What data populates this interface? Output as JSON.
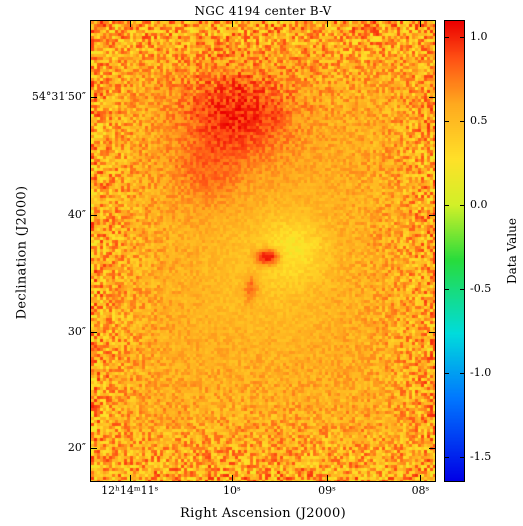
{
  "image": {
    "title": "NGC 4194 center B-V",
    "xlabel": "Right Ascension (J2000)",
    "ylabel": "Declination (J2000)",
    "colorbar_label": "Data Value"
  },
  "y_ticks": [
    {
      "label": "54°31′50″",
      "frac": 0.167
    },
    {
      "label": "40″",
      "frac": 0.421
    },
    {
      "label": "30″",
      "frac": 0.676
    },
    {
      "label": "20″",
      "frac": 0.926
    }
  ],
  "x_ticks": [
    {
      "label": "12ʰ14ᵐ11ˢ",
      "frac": 0.115
    },
    {
      "label": "10ˢ",
      "frac": 0.41
    },
    {
      "label": "09ˢ",
      "frac": 0.685
    },
    {
      "label": "08ˢ",
      "frac": 0.955
    }
  ],
  "colorbar": {
    "min": -1.65,
    "max": 1.1,
    "ticks": [
      {
        "label": "1.0",
        "value": 1.0
      },
      {
        "label": "0.5",
        "value": 0.5
      },
      {
        "label": "0.0",
        "value": 0.0
      },
      {
        "label": "-0.5",
        "value": -0.5
      },
      {
        "label": "-1.0",
        "value": -1.0
      },
      {
        "label": "-1.5",
        "value": -1.5
      }
    ]
  }
}
